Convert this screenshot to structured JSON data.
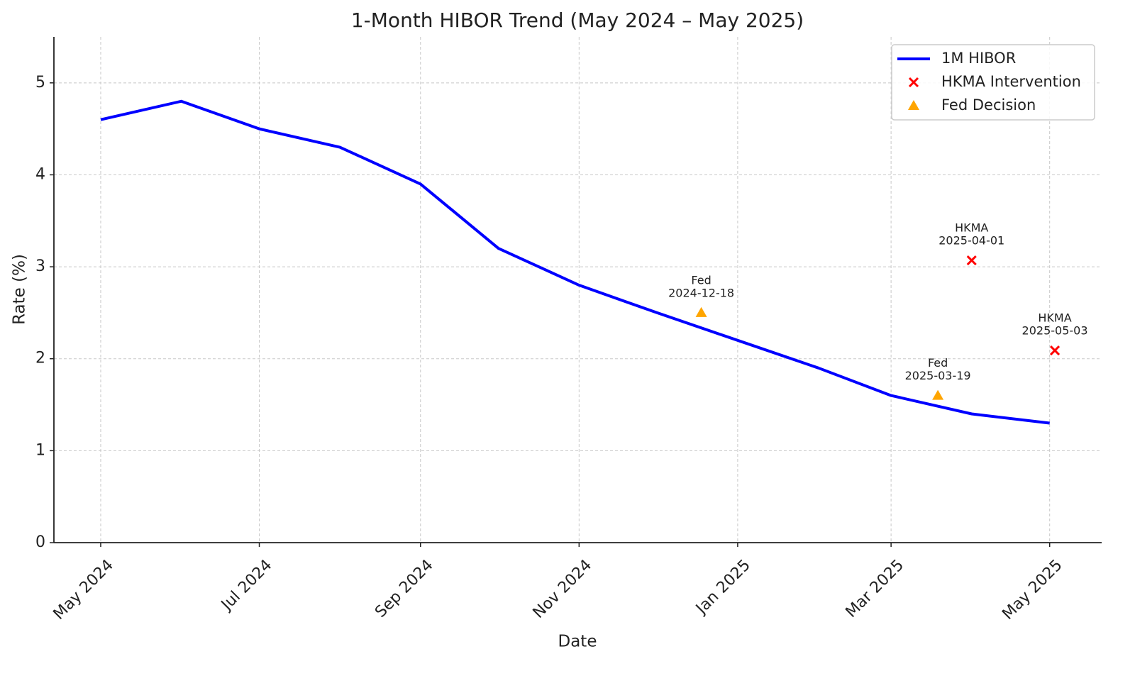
{
  "chart_data": {
    "type": "line",
    "title": "1-Month HIBOR Trend (May 2024 – May 2025)",
    "xlabel": "Date",
    "ylabel": "Rate (%)",
    "xlim": [
      "2024-04-13",
      "2025-05-21"
    ],
    "xticks": [
      {
        "value": "2024-05",
        "label": "May 2024"
      },
      {
        "value": "2024-07",
        "label": "Jul 2024"
      },
      {
        "value": "2024-09",
        "label": "Sep 2024"
      },
      {
        "value": "2024-11",
        "label": "Nov 2024"
      },
      {
        "value": "2025-01",
        "label": "Jan 2025"
      },
      {
        "value": "2025-03",
        "label": "Mar 2025"
      },
      {
        "value": "2025-05",
        "label": "May 2025"
      }
    ],
    "ylim": [
      0,
      5.5
    ],
    "yticks": [
      0,
      1,
      2,
      3,
      4,
      5
    ],
    "grid": true,
    "legend": "upper right",
    "series": [
      {
        "name": "1M HIBOR",
        "type": "line",
        "color": "#0000ff",
        "x": [
          "2024-05",
          "2024-06",
          "2024-07",
          "2024-08",
          "2024-09",
          "2024-10",
          "2024-11",
          "2024-12",
          "2025-01",
          "2025-02",
          "2025-03",
          "2025-04",
          "2025-05"
        ],
        "values": [
          4.6,
          4.8,
          4.5,
          4.3,
          3.9,
          3.2,
          2.8,
          2.5,
          2.2,
          1.9,
          1.6,
          1.4,
          1.3
        ]
      },
      {
        "name": "HKMA Intervention",
        "type": "scatter",
        "marker": "x",
        "color": "#ff0000",
        "x": [
          "2025-04-01",
          "2025-05-03"
        ],
        "values": [
          3.07,
          2.09
        ],
        "labels": [
          "HKMA",
          "HKMA"
        ]
      },
      {
        "name": "Fed Decision",
        "type": "scatter",
        "marker": "triangle",
        "color": "#ffa500",
        "x": [
          "2024-12-18",
          "2025-03-19"
        ],
        "values": [
          2.5,
          1.6
        ],
        "labels": [
          "Fed",
          "Fed"
        ]
      }
    ]
  }
}
